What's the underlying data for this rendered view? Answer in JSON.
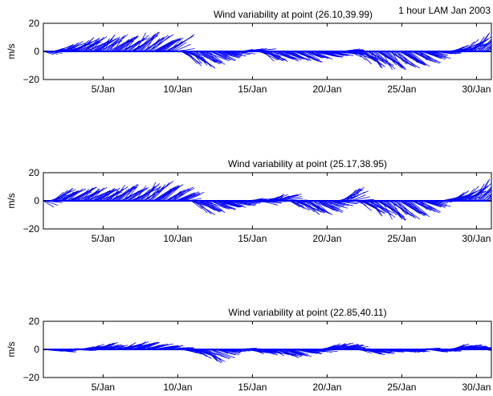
{
  "figure": {
    "annotation": "1 hour LAM Jan 2003",
    "colors": {
      "vector": "#0000ff",
      "axis": "#000000",
      "background": "#ffffff"
    }
  },
  "chart_data": [
    {
      "type": "feather",
      "title": "Wind variability at point (26.10,39.99)",
      "ylabel": "m/s",
      "xlabel": "",
      "xlim": [
        1,
        31
      ],
      "ylim": [
        -20,
        20
      ],
      "xticks": [
        5,
        10,
        15,
        20,
        25,
        30
      ],
      "xtick_labels": [
        "5/Jan",
        "10/Jan",
        "15/Jan",
        "20/Jan",
        "25/Jan",
        "30/Jan"
      ],
      "yticks": [
        -20,
        0,
        20
      ],
      "ytick_labels": [
        "−20",
        "0",
        "20"
      ],
      "grid": false,
      "points": [
        {
          "day": 1.0,
          "v": -3
        },
        {
          "day": 1.5,
          "v": 2
        },
        {
          "day": 2.0,
          "v": 5
        },
        {
          "day": 2.5,
          "v": 7
        },
        {
          "day": 3.0,
          "v": 8
        },
        {
          "day": 3.5,
          "v": 10
        },
        {
          "day": 4.0,
          "v": 11
        },
        {
          "day": 4.5,
          "v": 9
        },
        {
          "day": 5.0,
          "v": 12
        },
        {
          "day": 5.5,
          "v": 12
        },
        {
          "day": 6.0,
          "v": 11
        },
        {
          "day": 6.5,
          "v": 10
        },
        {
          "day": 7.0,
          "v": 13
        },
        {
          "day": 7.5,
          "v": 14
        },
        {
          "day": 8.0,
          "v": 12
        },
        {
          "day": 8.5,
          "v": 10
        },
        {
          "day": 9.0,
          "v": 9
        },
        {
          "day": 9.5,
          "v": 12
        },
        {
          "day": 10.0,
          "v": -2
        },
        {
          "day": 10.5,
          "v": -10
        },
        {
          "day": 11.0,
          "v": -12
        },
        {
          "day": 11.5,
          "v": -10
        },
        {
          "day": 12.0,
          "v": -8
        },
        {
          "day": 12.5,
          "v": -6
        },
        {
          "day": 13.0,
          "v": -4
        },
        {
          "day": 13.5,
          "v": -2
        },
        {
          "day": 14.0,
          "v": 1
        },
        {
          "day": 14.5,
          "v": 2
        },
        {
          "day": 15.0,
          "v": 2
        },
        {
          "day": 15.5,
          "v": -6
        },
        {
          "day": 16.0,
          "v": -8
        },
        {
          "day": 16.5,
          "v": -6
        },
        {
          "day": 17.0,
          "v": -7
        },
        {
          "day": 17.5,
          "v": -6
        },
        {
          "day": 18.0,
          "v": -8
        },
        {
          "day": 18.5,
          "v": -6
        },
        {
          "day": 19.0,
          "v": -5
        },
        {
          "day": 19.5,
          "v": -4
        },
        {
          "day": 20.0,
          "v": -4
        },
        {
          "day": 20.5,
          "v": -2
        },
        {
          "day": 21.0,
          "v": 2
        },
        {
          "day": 21.5,
          "v": -4
        },
        {
          "day": 22.0,
          "v": -8
        },
        {
          "day": 22.5,
          "v": -11
        },
        {
          "day": 23.0,
          "v": -12
        },
        {
          "day": 23.5,
          "v": -13
        },
        {
          "day": 24.0,
          "v": -13
        },
        {
          "day": 24.5,
          "v": -12
        },
        {
          "day": 25.0,
          "v": -11
        },
        {
          "day": 25.5,
          "v": -10
        },
        {
          "day": 26.0,
          "v": -8
        },
        {
          "day": 26.5,
          "v": -6
        },
        {
          "day": 27.0,
          "v": -3
        },
        {
          "day": 27.5,
          "v": -1
        },
        {
          "day": 28.0,
          "v": 2
        },
        {
          "day": 28.5,
          "v": 4
        },
        {
          "day": 29.0,
          "v": 7
        },
        {
          "day": 29.5,
          "v": 10
        },
        {
          "day": 30.0,
          "v": 13
        },
        {
          "day": 30.5,
          "v": 15
        },
        {
          "day": 31.0,
          "v": 17
        }
      ]
    },
    {
      "type": "feather",
      "title": "Wind variability at point (25.17,38.95)",
      "ylabel": "m/s",
      "xlabel": "",
      "xlim": [
        1,
        31
      ],
      "ylim": [
        -20,
        20
      ],
      "xticks": [
        5,
        10,
        15,
        20,
        25,
        30
      ],
      "xtick_labels": [
        "5/Jan",
        "10/Jan",
        "15/Jan",
        "20/Jan",
        "25/Jan",
        "30/Jan"
      ],
      "yticks": [
        -20,
        0,
        20
      ],
      "ytick_labels": [
        "−20",
        "0",
        "20"
      ],
      "grid": false,
      "points": [
        {
          "day": 1.0,
          "v": -6
        },
        {
          "day": 1.5,
          "v": 8
        },
        {
          "day": 2.0,
          "v": 9
        },
        {
          "day": 2.5,
          "v": 8
        },
        {
          "day": 3.0,
          "v": 10
        },
        {
          "day": 3.5,
          "v": 9
        },
        {
          "day": 4.0,
          "v": 10
        },
        {
          "day": 4.5,
          "v": 8
        },
        {
          "day": 5.0,
          "v": 9
        },
        {
          "day": 5.5,
          "v": 11
        },
        {
          "day": 6.0,
          "v": 12
        },
        {
          "day": 6.5,
          "v": 9
        },
        {
          "day": 7.0,
          "v": 10
        },
        {
          "day": 7.5,
          "v": 12
        },
        {
          "day": 8.0,
          "v": 14
        },
        {
          "day": 8.5,
          "v": 12
        },
        {
          "day": 9.0,
          "v": 11
        },
        {
          "day": 9.5,
          "v": 9
        },
        {
          "day": 10.0,
          "v": 7
        },
        {
          "day": 10.5,
          "v": 4
        },
        {
          "day": 11.0,
          "v": -10
        },
        {
          "day": 11.5,
          "v": -9
        },
        {
          "day": 12.0,
          "v": -7
        },
        {
          "day": 12.5,
          "v": -6
        },
        {
          "day": 13.0,
          "v": -5
        },
        {
          "day": 13.5,
          "v": -4
        },
        {
          "day": 14.0,
          "v": -2
        },
        {
          "day": 14.5,
          "v": 1
        },
        {
          "day": 15.0,
          "v": 2
        },
        {
          "day": 15.5,
          "v": -3
        },
        {
          "day": 16.0,
          "v": 4
        },
        {
          "day": 16.5,
          "v": 5
        },
        {
          "day": 17.0,
          "v": 4
        },
        {
          "day": 17.5,
          "v": -6
        },
        {
          "day": 18.0,
          "v": -8
        },
        {
          "day": 18.5,
          "v": -10
        },
        {
          "day": 19.0,
          "v": -10
        },
        {
          "day": 19.5,
          "v": -8
        },
        {
          "day": 20.0,
          "v": -5
        },
        {
          "day": 20.5,
          "v": -2
        },
        {
          "day": 21.0,
          "v": 10
        },
        {
          "day": 21.5,
          "v": 8
        },
        {
          "day": 22.0,
          "v": -6
        },
        {
          "day": 22.5,
          "v": -9
        },
        {
          "day": 23.0,
          "v": -11
        },
        {
          "day": 23.5,
          "v": -13
        },
        {
          "day": 24.0,
          "v": -14
        },
        {
          "day": 24.5,
          "v": -13
        },
        {
          "day": 25.0,
          "v": -12
        },
        {
          "day": 25.5,
          "v": -10
        },
        {
          "day": 26.0,
          "v": -8
        },
        {
          "day": 26.5,
          "v": -5
        },
        {
          "day": 27.0,
          "v": -2
        },
        {
          "day": 27.5,
          "v": 1
        },
        {
          "day": 28.0,
          "v": 4
        },
        {
          "day": 28.5,
          "v": 7
        },
        {
          "day": 29.0,
          "v": 9
        },
        {
          "day": 29.5,
          "v": 12
        },
        {
          "day": 30.0,
          "v": 15
        },
        {
          "day": 30.5,
          "v": 18
        },
        {
          "day": 31.0,
          "v": 16
        }
      ]
    },
    {
      "type": "feather",
      "title": "Wind variability at point (22.85,40.11)",
      "ylabel": "m/s",
      "xlabel": "",
      "xlim": [
        1,
        31
      ],
      "ylim": [
        -20,
        20
      ],
      "xticks": [
        5,
        10,
        15,
        20,
        25,
        30
      ],
      "xtick_labels": [
        "5/Jan",
        "10/Jan",
        "15/Jan",
        "20/Jan",
        "25/Jan",
        "30/Jan"
      ],
      "yticks": [
        -20,
        0,
        20
      ],
      "ytick_labels": [
        "−20",
        "0",
        "20"
      ],
      "grid": false,
      "points": [
        {
          "day": 1.0,
          "v": -1
        },
        {
          "day": 1.5,
          "v": -2
        },
        {
          "day": 2.0,
          "v": -1
        },
        {
          "day": 2.5,
          "v": 1
        },
        {
          "day": 3.0,
          "v": -1
        },
        {
          "day": 3.5,
          "v": 2
        },
        {
          "day": 4.0,
          "v": 3
        },
        {
          "day": 4.5,
          "v": 5
        },
        {
          "day": 5.0,
          "v": 4
        },
        {
          "day": 5.5,
          "v": 2
        },
        {
          "day": 6.0,
          "v": 3
        },
        {
          "day": 6.5,
          "v": 5
        },
        {
          "day": 7.0,
          "v": 6
        },
        {
          "day": 7.5,
          "v": 5
        },
        {
          "day": 8.0,
          "v": 4
        },
        {
          "day": 8.5,
          "v": 3
        },
        {
          "day": 9.0,
          "v": 2
        },
        {
          "day": 9.5,
          "v": 1
        },
        {
          "day": 10.0,
          "v": -1
        },
        {
          "day": 10.5,
          "v": -3
        },
        {
          "day": 11.0,
          "v": -5
        },
        {
          "day": 11.5,
          "v": -8
        },
        {
          "day": 12.0,
          "v": -10
        },
        {
          "day": 12.5,
          "v": -4
        },
        {
          "day": 13.0,
          "v": -2
        },
        {
          "day": 13.5,
          "v": -1
        },
        {
          "day": 14.0,
          "v": 1
        },
        {
          "day": 14.5,
          "v": -2
        },
        {
          "day": 15.0,
          "v": -3
        },
        {
          "day": 15.5,
          "v": -4
        },
        {
          "day": 16.0,
          "v": -3
        },
        {
          "day": 16.5,
          "v": -5
        },
        {
          "day": 17.0,
          "v": -6
        },
        {
          "day": 17.5,
          "v": -4
        },
        {
          "day": 18.0,
          "v": -3
        },
        {
          "day": 18.5,
          "v": -2
        },
        {
          "day": 19.0,
          "v": -2
        },
        {
          "day": 19.5,
          "v": 3
        },
        {
          "day": 20.0,
          "v": 4
        },
        {
          "day": 20.5,
          "v": 5
        },
        {
          "day": 21.0,
          "v": 3
        },
        {
          "day": 21.5,
          "v": 2
        },
        {
          "day": 22.0,
          "v": -2
        },
        {
          "day": 22.5,
          "v": -4
        },
        {
          "day": 23.0,
          "v": -3
        },
        {
          "day": 23.5,
          "v": -2
        },
        {
          "day": 24.0,
          "v": -1
        },
        {
          "day": 24.5,
          "v": -2
        },
        {
          "day": 25.0,
          "v": -2
        },
        {
          "day": 25.5,
          "v": -1
        },
        {
          "day": 26.0,
          "v": 1
        },
        {
          "day": 26.5,
          "v": -1
        },
        {
          "day": 27.0,
          "v": -2
        },
        {
          "day": 27.5,
          "v": -1
        },
        {
          "day": 28.0,
          "v": 2
        },
        {
          "day": 28.5,
          "v": 4
        },
        {
          "day": 29.0,
          "v": 3
        },
        {
          "day": 29.5,
          "v": 2
        },
        {
          "day": 30.0,
          "v": 1
        },
        {
          "day": 30.5,
          "v": -2
        },
        {
          "day": 31.0,
          "v": -3
        }
      ]
    }
  ]
}
